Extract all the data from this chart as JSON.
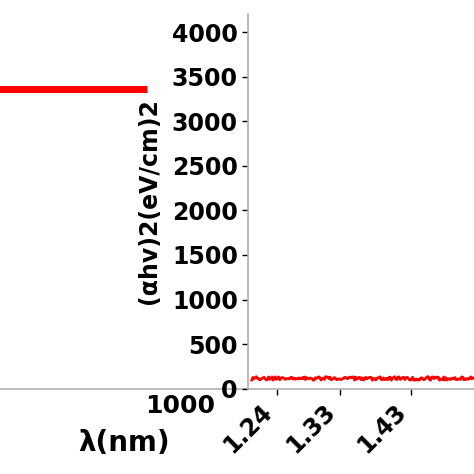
{
  "left_plot": {
    "xlabel": "λ(nm)",
    "xlim": [
      200,
      1300
    ],
    "ylim": [
      0,
      110
    ],
    "xticks": [
      1000
    ],
    "line_y": 88,
    "line_x_start": 0,
    "line_x_end": 850,
    "line_color": "#ff0000",
    "line_width": 5,
    "axis_color": "#b0b0b0",
    "xlabel_fontsize": 20,
    "xlabel_fontweight": "bold",
    "tick_fontsize": 18,
    "tick_fontweight": "bold"
  },
  "right_plot": {
    "ylabel": "(αhv)2(eV/cm)2",
    "xlim": [
      1.2,
      1.52
    ],
    "ylim": [
      0,
      4200
    ],
    "xticks": [
      1.24,
      1.33,
      1.43
    ],
    "yticks": [
      0,
      500,
      1000,
      1500,
      2000,
      2500,
      3000,
      3500,
      4000
    ],
    "line_y_value": 110,
    "line_color": "#ff0000",
    "line_width": 2,
    "axis_color": "#b0b0b0",
    "ylabel_fontsize": 17,
    "ylabel_fontweight": "bold",
    "xtick_rotation": 45,
    "tick_fontsize": 17,
    "tick_fontweight": "bold"
  },
  "background_color": "#ffffff"
}
